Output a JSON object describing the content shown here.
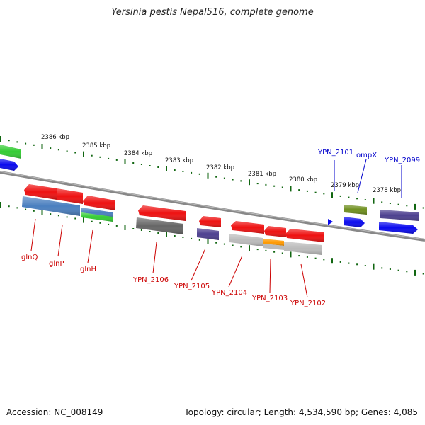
{
  "title": "Yersinia pestis Nepal516, complete genome",
  "footer": {
    "accession": "Accession: NC_008149",
    "summary": "Topology: circular; Length: 4,534,590 bp; Genes: 4,085"
  },
  "colors": {
    "red": "#ee1111",
    "blue": "#0a0aee",
    "steelblue": "#4a7fbf",
    "green": "#33cc33",
    "gray": "#666666",
    "lightgray": "#bbbbbb",
    "orange": "#ff9900",
    "olive": "#6f8f1f",
    "purple": "#4c3f8f",
    "tick": "#116611",
    "backbone": "#888888"
  },
  "kbp_labels": [
    {
      "text": "2386 kbp",
      "pos": 2386
    },
    {
      "text": "2385 kbp",
      "pos": 2385
    },
    {
      "text": "2384 kbp",
      "pos": 2384
    },
    {
      "text": "2383 kbp",
      "pos": 2383
    },
    {
      "text": "2382 kbp",
      "pos": 2382
    },
    {
      "text": "2381 kbp",
      "pos": 2381
    },
    {
      "text": "2380 kbp",
      "pos": 2380
    },
    {
      "text": "2379 kbp",
      "pos": 2379
    },
    {
      "text": "2378 kbp",
      "pos": 2378
    }
  ],
  "gene_labels": [
    {
      "text": "glnQ",
      "color": "red"
    },
    {
      "text": "glnP",
      "color": "red"
    },
    {
      "text": "glnH",
      "color": "red"
    },
    {
      "text": "YPN_2106",
      "color": "red"
    },
    {
      "text": "YPN_2105",
      "color": "red"
    },
    {
      "text": "YPN_2104",
      "color": "red"
    },
    {
      "text": "YPN_2103",
      "color": "red"
    },
    {
      "text": "YPN_2102",
      "color": "red"
    },
    {
      "text": "YPN_2101",
      "color": "blue"
    },
    {
      "text": "ompX",
      "color": "blue"
    },
    {
      "text": "YPN_2099",
      "color": "blue"
    }
  ]
}
